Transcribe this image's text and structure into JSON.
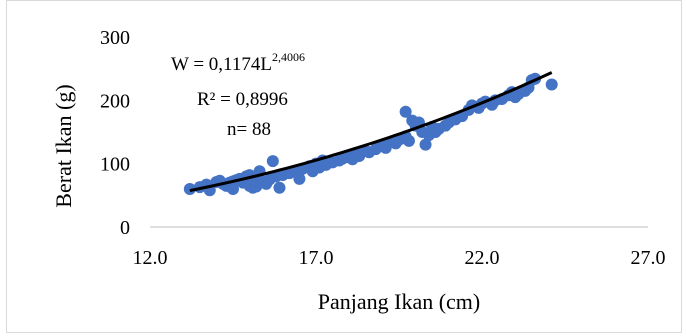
{
  "chart_data": {
    "type": "scatter",
    "title": "",
    "xlabel": "Panjang Ikan (cm)",
    "ylabel": "Berat Ikan (g)",
    "xlim": [
      12.0,
      27.0
    ],
    "ylim": [
      0,
      300
    ],
    "xticks": [
      "12.0",
      "17.0",
      "22.0",
      "27.0"
    ],
    "yticks": [
      "0",
      "100",
      "200",
      "300"
    ],
    "grid": false,
    "legend": "none",
    "marker_color": "#4472C4",
    "trend_color": "#000000",
    "annotation": {
      "line1_prefix": "W = 0,1174L",
      "line1_exponent": "2,4006",
      "line2": "R² = 0,8996",
      "line3": "n= 88"
    },
    "trendline": {
      "type": "power",
      "a": 0.1174,
      "b": 2.4006,
      "x_range": [
        13.2,
        24.1
      ]
    },
    "points": [
      [
        13.2,
        60
      ],
      [
        13.5,
        63
      ],
      [
        13.7,
        67
      ],
      [
        13.8,
        58
      ],
      [
        14.0,
        71
      ],
      [
        14.1,
        73
      ],
      [
        14.2,
        68
      ],
      [
        14.3,
        65
      ],
      [
        14.4,
        70
      ],
      [
        14.5,
        72
      ],
      [
        14.5,
        60
      ],
      [
        14.6,
        74
      ],
      [
        14.7,
        76
      ],
      [
        14.8,
        70
      ],
      [
        14.9,
        80
      ],
      [
        15.0,
        65
      ],
      [
        15.0,
        82
      ],
      [
        15.1,
        62
      ],
      [
        15.2,
        78
      ],
      [
        15.2,
        64
      ],
      [
        15.3,
        88
      ],
      [
        15.4,
        72
      ],
      [
        15.5,
        68
      ],
      [
        15.6,
        75
      ],
      [
        15.7,
        104
      ],
      [
        15.8,
        80
      ],
      [
        15.9,
        62
      ],
      [
        16.0,
        82
      ],
      [
        16.2,
        85
      ],
      [
        16.4,
        88
      ],
      [
        16.5,
        76
      ],
      [
        16.6,
        92
      ],
      [
        16.8,
        96
      ],
      [
        16.9,
        88
      ],
      [
        17.0,
        100
      ],
      [
        17.1,
        94
      ],
      [
        17.2,
        105
      ],
      [
        17.3,
        98
      ],
      [
        17.5,
        102
      ],
      [
        17.7,
        105
      ],
      [
        17.8,
        108
      ],
      [
        18.0,
        110
      ],
      [
        18.1,
        107
      ],
      [
        18.2,
        117
      ],
      [
        18.3,
        112
      ],
      [
        18.5,
        120
      ],
      [
        18.6,
        118
      ],
      [
        18.8,
        123
      ],
      [
        18.9,
        128
      ],
      [
        19.0,
        130
      ],
      [
        19.1,
        125
      ],
      [
        19.3,
        135
      ],
      [
        19.4,
        132
      ],
      [
        19.5,
        138
      ],
      [
        19.6,
        140
      ],
      [
        19.7,
        143
      ],
      [
        19.7,
        182
      ],
      [
        19.8,
        136
      ],
      [
        19.9,
        168
      ],
      [
        20.0,
        160
      ],
      [
        20.1,
        165
      ],
      [
        20.2,
        150
      ],
      [
        20.3,
        130
      ],
      [
        20.4,
        145
      ],
      [
        20.5,
        158
      ],
      [
        20.6,
        150
      ],
      [
        20.7,
        155
      ],
      [
        20.9,
        160
      ],
      [
        21.0,
        165
      ],
      [
        21.2,
        170
      ],
      [
        21.4,
        175
      ],
      [
        21.6,
        185
      ],
      [
        21.7,
        192
      ],
      [
        21.9,
        188
      ],
      [
        22.0,
        195
      ],
      [
        22.1,
        198
      ],
      [
        22.3,
        193
      ],
      [
        22.4,
        200
      ],
      [
        22.6,
        202
      ],
      [
        22.8,
        208
      ],
      [
        22.9,
        213
      ],
      [
        23.0,
        205
      ],
      [
        23.1,
        210
      ],
      [
        23.3,
        215
      ],
      [
        23.4,
        220
      ],
      [
        23.5,
        232
      ],
      [
        23.6,
        234
      ],
      [
        24.1,
        225
      ]
    ]
  }
}
